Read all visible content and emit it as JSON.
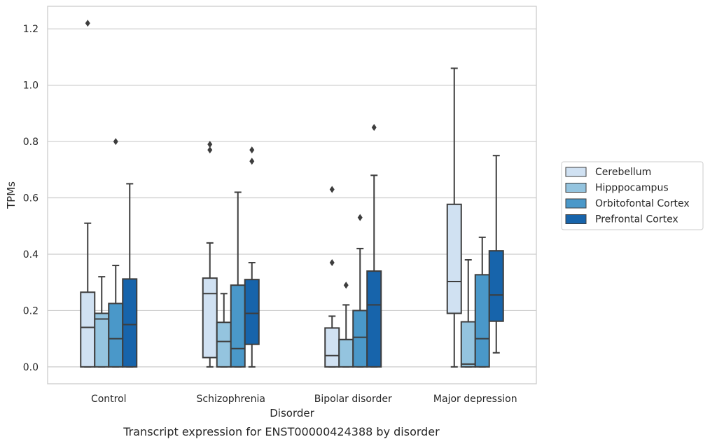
{
  "caption": "Transcript expression for ENST00000424388 by disorder",
  "chart_data": {
    "type": "box",
    "xlabel": "Disorder",
    "ylabel": "TPMs",
    "ylim": [
      -0.06,
      1.28
    ],
    "yticks": [
      "0.0",
      "0.2",
      "0.4",
      "0.6",
      "0.8",
      "1.0",
      "1.2"
    ],
    "grid": "horizontal",
    "legend_position": "right",
    "categories": [
      "Control",
      "Schizophrenia",
      "Bipolar disorder",
      "Major depression"
    ],
    "series": [
      {
        "name": "Cerebellum",
        "color": "#d0e1f2",
        "boxes": [
          {
            "whislo": 0.0,
            "q1": 0.0,
            "med": 0.14,
            "q3": 0.265,
            "whishi": 0.51,
            "fliers": [
              1.22
            ]
          },
          {
            "whislo": 0.0,
            "q1": 0.033,
            "med": 0.26,
            "q3": 0.315,
            "whishi": 0.44,
            "fliers": [
              0.79,
              0.77
            ]
          },
          {
            "whislo": 0.0,
            "q1": 0.0,
            "med": 0.04,
            "q3": 0.138,
            "whishi": 0.18,
            "fliers": [
              0.63,
              0.37
            ]
          },
          {
            "whislo": 0.0,
            "q1": 0.19,
            "med": 0.303,
            "q3": 0.577,
            "whishi": 1.06,
            "fliers": []
          }
        ]
      },
      {
        "name": "Hipppocampus",
        "color": "#94c4df",
        "boxes": [
          {
            "whislo": 0.0,
            "q1": 0.0,
            "med": 0.17,
            "q3": 0.19,
            "whishi": 0.32,
            "fliers": []
          },
          {
            "whislo": 0.0,
            "q1": 0.0,
            "med": 0.09,
            "q3": 0.158,
            "whishi": 0.26,
            "fliers": []
          },
          {
            "whislo": 0.0,
            "q1": 0.0,
            "med": 0.097,
            "q3": 0.097,
            "whishi": 0.22,
            "fliers": [
              0.29
            ]
          },
          {
            "whislo": 0.0,
            "q1": 0.0,
            "med": 0.01,
            "q3": 0.16,
            "whishi": 0.38,
            "fliers": []
          }
        ]
      },
      {
        "name": "Orbitofontal Cortex",
        "color": "#4a98c9",
        "boxes": [
          {
            "whislo": 0.0,
            "q1": 0.0,
            "med": 0.1,
            "q3": 0.225,
            "whishi": 0.36,
            "fliers": [
              0.8
            ]
          },
          {
            "whislo": 0.0,
            "q1": 0.0,
            "med": 0.065,
            "q3": 0.29,
            "whishi": 0.62,
            "fliers": []
          },
          {
            "whislo": 0.0,
            "q1": 0.0,
            "med": 0.105,
            "q3": 0.2,
            "whishi": 0.42,
            "fliers": [
              0.53
            ]
          },
          {
            "whislo": 0.0,
            "q1": 0.0,
            "med": 0.1,
            "q3": 0.327,
            "whishi": 0.46,
            "fliers": []
          }
        ]
      },
      {
        "name": "Prefrontal Cortex",
        "color": "#1764ab",
        "boxes": [
          {
            "whislo": 0.0,
            "q1": 0.0,
            "med": 0.15,
            "q3": 0.312,
            "whishi": 0.65,
            "fliers": []
          },
          {
            "whislo": 0.0,
            "q1": 0.08,
            "med": 0.19,
            "q3": 0.31,
            "whishi": 0.37,
            "fliers": [
              0.77,
              0.73
            ]
          },
          {
            "whislo": 0.0,
            "q1": 0.0,
            "med": 0.22,
            "q3": 0.34,
            "whishi": 0.68,
            "fliers": [
              0.85
            ]
          },
          {
            "whislo": 0.05,
            "q1": 0.162,
            "med": 0.255,
            "q3": 0.412,
            "whishi": 0.75,
            "fliers": []
          }
        ]
      }
    ]
  }
}
